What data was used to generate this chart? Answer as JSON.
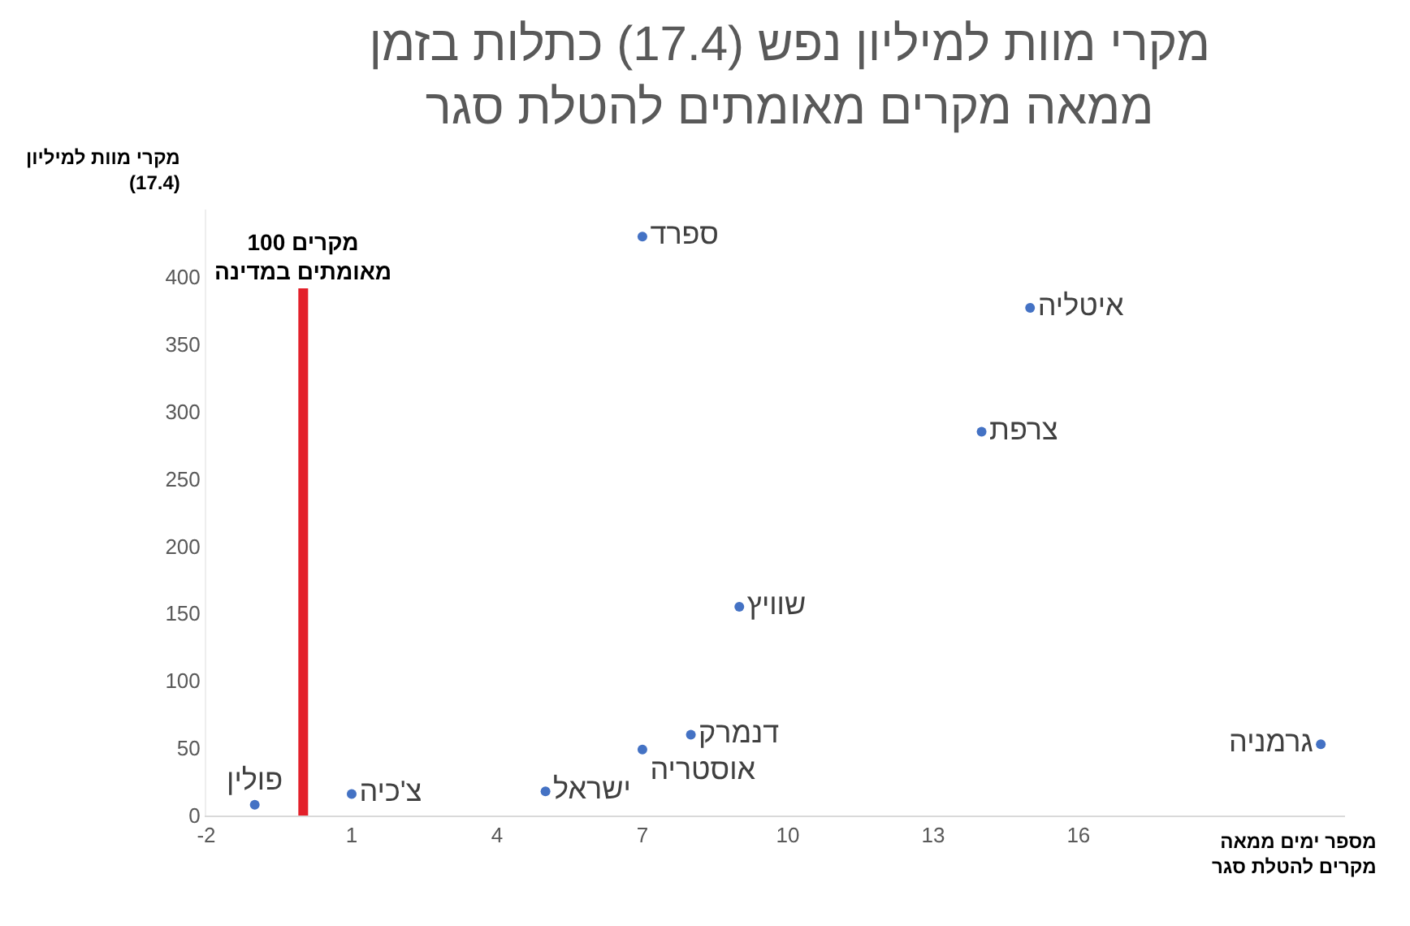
{
  "chart_data": {
    "type": "scatter",
    "title": "מקרי מוות למיליון נפש (17.4) כתלות בזמן\nממאה מקרים מאומתים להטלת סגר",
    "xlabel": "מספר ימים ממאה\nמקרים להטלת סגר",
    "ylabel": "מקרי מוות למיליון\n(17.4)",
    "series": [
      {
        "name": "פולין",
        "color": "#4472c4",
        "x": [
          -1
        ],
        "values": [
          8
        ]
      },
      {
        "name": "צ'כיה",
        "color": "#4472c4",
        "x": [
          1
        ],
        "values": [
          16
        ]
      },
      {
        "name": "ישראל",
        "color": "#4472c4",
        "x": [
          5
        ],
        "values": [
          18
        ]
      },
      {
        "name": "אוסטריה",
        "color": "#4472c4",
        "x": [
          7
        ],
        "values": [
          49
        ]
      },
      {
        "name": "דנמרק",
        "color": "#4472c4",
        "x": [
          8
        ],
        "values": [
          60
        ]
      },
      {
        "name": "ספרד",
        "color": "#4472c4",
        "x": [
          7
        ],
        "values": [
          430
        ]
      },
      {
        "name": "שוויץ",
        "color": "#4472c4",
        "x": [
          9
        ],
        "values": [
          155
        ]
      },
      {
        "name": "צרפת",
        "color": "#4472c4",
        "x": [
          14
        ],
        "values": [
          285
        ]
      },
      {
        "name": "איטליה",
        "color": "#4472c4",
        "x": [
          15
        ],
        "values": [
          377
        ]
      },
      {
        "name": "גרמניה",
        "color": "#4472c4",
        "x": [
          21
        ],
        "values": [
          53
        ]
      }
    ],
    "ref_lines": [
      {
        "axis": "x",
        "value": 0,
        "label": "100 מקרים\nמאומתים במדינה",
        "color": "#e3202a"
      }
    ],
    "xlim": [
      -2,
      21.5
    ],
    "xticks": [
      -2,
      1,
      4,
      7,
      10,
      13,
      16
    ],
    "ylim": [
      0,
      450
    ],
    "yticks": [
      0,
      50,
      100,
      150,
      200,
      250,
      300,
      350,
      400
    ],
    "grid": false,
    "legend": false,
    "marker": "circle"
  }
}
